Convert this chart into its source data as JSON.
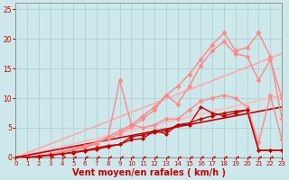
{
  "background_color": "#cce8eb",
  "grid_color": "#aacccc",
  "xlabel": "Vent moyen/en rafales ( km/h )",
  "xlabel_color": "#cc0000",
  "xlabel_fontsize": 7,
  "xtick_color": "#cc0000",
  "ytick_color": "#cc0000",
  "xlim": [
    0,
    23
  ],
  "ylim": [
    0,
    26
  ],
  "yticks": [
    0,
    5,
    10,
    15,
    20,
    25
  ],
  "xticks": [
    0,
    1,
    2,
    3,
    4,
    5,
    6,
    7,
    8,
    9,
    10,
    11,
    12,
    13,
    14,
    15,
    16,
    17,
    18,
    19,
    20,
    21,
    22,
    23
  ],
  "series": [
    {
      "x": [
        0,
        1,
        2,
        3,
        4,
        5,
        6,
        7,
        8,
        9,
        10,
        11,
        12,
        13,
        14,
        15,
        16,
        17,
        18,
        19,
        20,
        21,
        22,
        23
      ],
      "y": [
        0,
        0,
        0,
        0,
        0,
        0,
        0,
        0,
        0,
        0,
        0,
        0,
        0,
        0,
        0,
        0,
        0,
        0,
        0,
        0,
        0,
        0,
        0,
        0
      ],
      "color": "#cc0000",
      "linewidth": 0.8,
      "marker": 4,
      "markersize": 3,
      "zorder": 5
    },
    {
      "x": [
        0,
        23
      ],
      "y": [
        0,
        8.5
      ],
      "color": "#cc0000",
      "linewidth": 1.2,
      "marker": null,
      "markersize": 0,
      "zorder": 3
    },
    {
      "x": [
        0,
        23
      ],
      "y": [
        0,
        17.5
      ],
      "color": "#ffaaaa",
      "linewidth": 1.2,
      "marker": null,
      "markersize": 0,
      "zorder": 2
    },
    {
      "x": [
        0,
        23
      ],
      "y": [
        0,
        10.5
      ],
      "color": "#ffbbbb",
      "linewidth": 1.2,
      "marker": null,
      "markersize": 0,
      "zorder": 2
    },
    {
      "x": [
        0,
        1,
        2,
        3,
        4,
        5,
        6,
        7,
        8,
        9,
        10,
        11,
        12,
        13,
        14,
        15,
        16,
        17,
        18,
        19,
        20,
        21,
        22,
        23
      ],
      "y": [
        0,
        0,
        0.2,
        0.4,
        0.6,
        0.8,
        1.1,
        1.4,
        1.8,
        2.2,
        3.5,
        3.8,
        4.2,
        4.5,
        5.5,
        5.8,
        6.5,
        7.0,
        7.5,
        7.8,
        8.0,
        1.2,
        1.2,
        1.2
      ],
      "color": "#cc0000",
      "linewidth": 1.0,
      "marker": "D",
      "markersize": 2,
      "zorder": 4
    },
    {
      "x": [
        0,
        1,
        2,
        3,
        4,
        5,
        6,
        7,
        8,
        9,
        10,
        11,
        12,
        13,
        14,
        15,
        16,
        17,
        18,
        19,
        20,
        21,
        22,
        23
      ],
      "y": [
        0,
        0,
        0.2,
        0.4,
        0.6,
        0.9,
        1.2,
        1.6,
        2.0,
        2.2,
        3.0,
        3.2,
        4.5,
        4.0,
        5.5,
        5.5,
        8.5,
        7.5,
        7.0,
        7.5,
        8.0,
        1.2,
        1.2,
        1.2
      ],
      "color": "#cc0000",
      "linewidth": 1.0,
      "marker": "D",
      "markersize": 2,
      "zorder": 4
    },
    {
      "x": [
        0,
        1,
        2,
        3,
        4,
        5,
        6,
        7,
        8,
        9,
        10,
        11,
        12,
        13,
        14,
        15,
        16,
        17,
        18,
        19,
        20,
        21,
        22,
        23
      ],
      "y": [
        0,
        0,
        0.3,
        0.6,
        1.0,
        1.5,
        2.0,
        2.6,
        3.5,
        4.5,
        5.5,
        7.0,
        8.5,
        10.5,
        12.0,
        14.0,
        16.5,
        19.0,
        21.0,
        18.0,
        18.5,
        21.0,
        17.0,
        6.5
      ],
      "color": "#ff8888",
      "linewidth": 1.0,
      "marker": "D",
      "markersize": 2.5,
      "zorder": 3
    },
    {
      "x": [
        0,
        1,
        2,
        3,
        4,
        5,
        6,
        7,
        8,
        9,
        10,
        11,
        12,
        13,
        14,
        15,
        16,
        17,
        18,
        19,
        20,
        21,
        22,
        23
      ],
      "y": [
        0,
        0,
        0.3,
        0.5,
        0.9,
        1.3,
        1.8,
        2.5,
        3.2,
        4.0,
        5.2,
        6.5,
        8.0,
        10.5,
        9.0,
        12.0,
        15.5,
        18.0,
        19.5,
        17.5,
        17.0,
        13.0,
        16.5,
        10.0
      ],
      "color": "#ff8888",
      "linewidth": 1.0,
      "marker": "D",
      "markersize": 2.5,
      "zorder": 3
    },
    {
      "x": [
        0,
        1,
        2,
        3,
        4,
        5,
        6,
        7,
        8,
        9,
        10,
        11,
        12,
        13,
        14,
        15,
        16,
        17,
        18,
        19,
        20,
        21,
        22,
        23
      ],
      "y": [
        0,
        0,
        0.3,
        0.5,
        0.8,
        1.2,
        1.7,
        2.3,
        3.5,
        13.0,
        5.5,
        5.0,
        5.5,
        6.5,
        6.5,
        8.0,
        9.5,
        10.0,
        10.5,
        10.0,
        8.5,
        2.5,
        10.5,
        3.0
      ],
      "color": "#ff8888",
      "linewidth": 1.0,
      "marker": "D",
      "markersize": 2.5,
      "zorder": 3
    }
  ]
}
